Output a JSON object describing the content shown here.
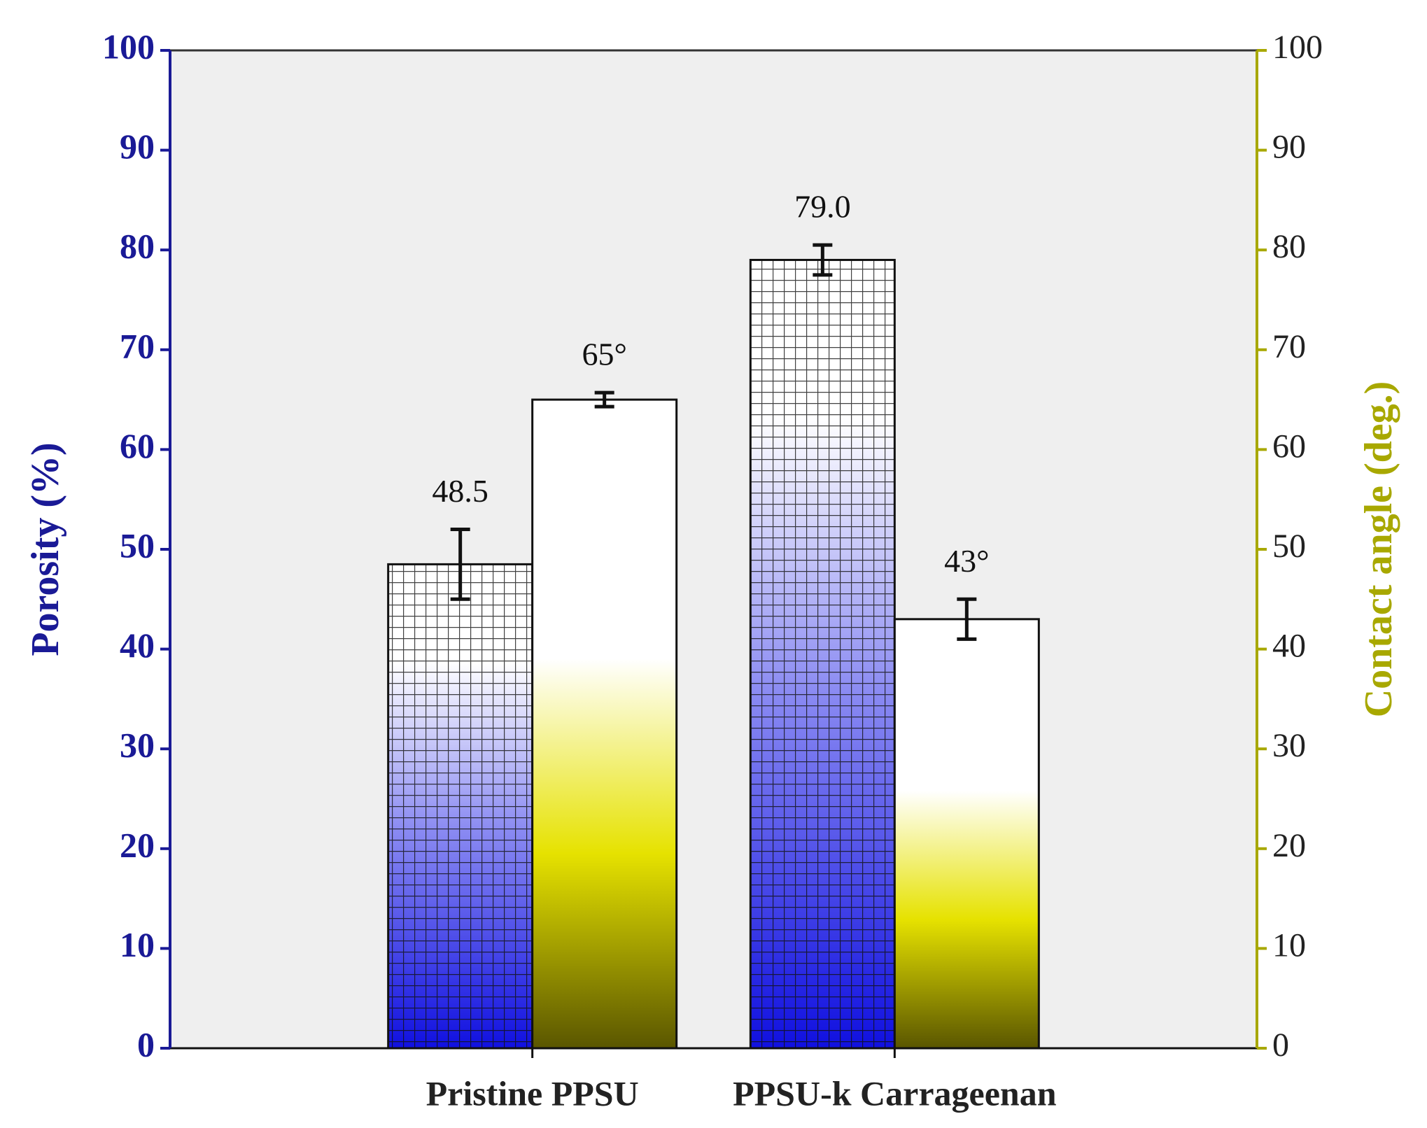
{
  "chart_data": {
    "type": "bar",
    "categories": [
      "Pristine PPSU",
      "PPSU-k Carrageenan"
    ],
    "ylabel": "Porosity (%)",
    "y2label": "Contact angle (deg.)",
    "ylim": [
      0,
      100
    ],
    "yticks": [
      0,
      10,
      20,
      30,
      40,
      50,
      60,
      70,
      80,
      90,
      100
    ],
    "y2lim": [
      0,
      100
    ],
    "y2ticks": [
      0,
      10,
      20,
      30,
      40,
      50,
      60,
      70,
      80,
      90,
      100
    ],
    "series": [
      {
        "name": "Porosity",
        "color": "#1414e0",
        "axis": "y",
        "values": [
          48.5,
          79.0
        ],
        "value_labels": [
          "48.5",
          "79.0"
        ],
        "errors": [
          3.5,
          1.5
        ]
      },
      {
        "name": "Contact angle",
        "color": "#c8c400",
        "axis": "y2",
        "values": [
          65,
          43
        ],
        "value_labels": [
          "65°",
          "43°"
        ],
        "errors": [
          0.7,
          2
        ]
      }
    ],
    "ycolor": "#1a1a96",
    "y2color": "#a8a800",
    "grid": false
  }
}
